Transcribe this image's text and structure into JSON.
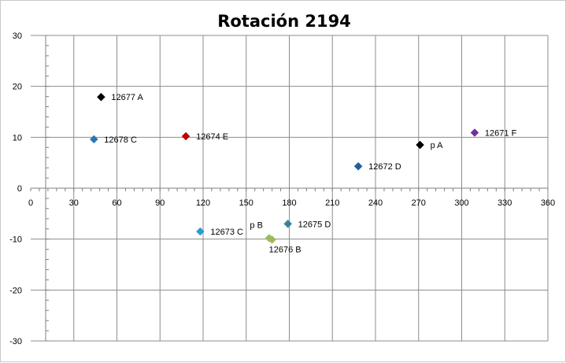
{
  "chart_data": {
    "type": "scatter",
    "title": "Rotación 2194",
    "xlabel": "",
    "ylabel": "",
    "xlim": [
      0,
      360
    ],
    "ylim": [
      -30,
      30
    ],
    "xticks": [
      0,
      30,
      60,
      90,
      120,
      150,
      180,
      210,
      240,
      270,
      300,
      330,
      360
    ],
    "yticks": [
      -30,
      -20,
      -10,
      0,
      10,
      20,
      30
    ],
    "xtick_labels": [
      "0",
      "30",
      "60",
      "90",
      "120",
      "150",
      "180",
      "210",
      "240",
      "270",
      "300",
      "330",
      "360"
    ],
    "ytick_labels": [
      "-30",
      "-20",
      "-10",
      "0",
      "10",
      "20",
      "30"
    ],
    "grid": true,
    "marker": "diamond",
    "points": [
      {
        "label": "12677 A",
        "x": 49,
        "y": 17.9,
        "color": "#000000",
        "label_pos": "right"
      },
      {
        "label": "12678 C",
        "x": 44,
        "y": 9.6,
        "color": "#2e75b6",
        "label_pos": "right"
      },
      {
        "label": "12674 E",
        "x": 108,
        "y": 10.2,
        "color": "#c00000",
        "label_pos": "right"
      },
      {
        "label": "12673 C",
        "x": 118,
        "y": -8.5,
        "color": "#2e9ad0",
        "label_pos": "right"
      },
      {
        "label": "12675 D",
        "x": 179,
        "y": -7.0,
        "color": "#31849b",
        "label_pos": "right"
      },
      {
        "label": "p B",
        "x": 166,
        "y": -9.8,
        "color": "#9bbb59",
        "label_pos": "left-above"
      },
      {
        "label": "12676 B",
        "x": 168,
        "y": -10.1,
        "color": "#9bbb59",
        "label_pos": "right-below"
      },
      {
        "label": "12672 D",
        "x": 228,
        "y": 4.3,
        "color": "#1f5fa0",
        "label_pos": "right"
      },
      {
        "label": "p A",
        "x": 271,
        "y": 8.5,
        "color": "#000000",
        "label_pos": "right"
      },
      {
        "label": "12671 F",
        "x": 309,
        "y": 10.9,
        "color": "#7030a0",
        "label_pos": "right"
      }
    ]
  }
}
